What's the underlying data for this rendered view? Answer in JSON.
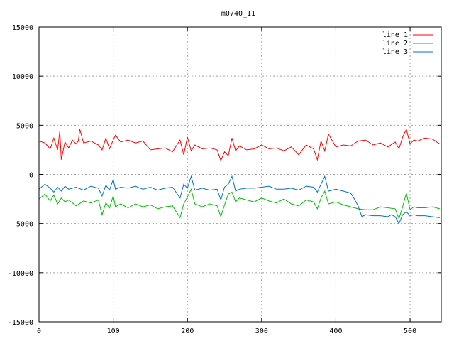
{
  "chart_data": {
    "type": "line",
    "title": "m0740_11",
    "xlabel": "",
    "ylabel": "",
    "xlim": [
      0,
      542
    ],
    "ylim": [
      -15000,
      15000
    ],
    "xticks": [
      0,
      100,
      200,
      300,
      400,
      500
    ],
    "yticks": [
      -15000,
      -10000,
      -5000,
      0,
      5000,
      10000,
      15000
    ],
    "xtick_labels": [
      "0",
      "100",
      "200",
      "300",
      "400",
      "500"
    ],
    "ytick_labels": [
      "-15000",
      "-10000",
      "-5000",
      "0",
      "5000",
      "10000",
      "15000"
    ],
    "grid": true,
    "legend_position": "top-right",
    "series": [
      {
        "name": "line 1",
        "color": "#ff0000",
        "x": [
          0,
          8,
          15,
          20,
          25,
          28,
          30,
          35,
          40,
          45,
          50,
          53,
          55,
          60,
          70,
          80,
          85,
          90,
          95,
          100,
          103,
          110,
          120,
          130,
          140,
          150,
          160,
          170,
          180,
          190,
          195,
          200,
          205,
          210,
          220,
          230,
          240,
          245,
          250,
          255,
          260,
          265,
          270,
          280,
          290,
          300,
          310,
          320,
          330,
          340,
          350,
          360,
          370,
          375,
          380,
          385,
          390,
          400,
          410,
          420,
          430,
          440,
          450,
          460,
          470,
          480,
          485,
          490,
          495,
          500,
          505,
          510,
          520,
          530,
          540
        ],
        "y": [
          3400,
          3200,
          2600,
          3700,
          2500,
          4400,
          1500,
          3300,
          2700,
          3500,
          3100,
          3400,
          4600,
          3200,
          3400,
          3000,
          2500,
          3700,
          2600,
          3500,
          4000,
          3300,
          3500,
          3200,
          3400,
          2500,
          2600,
          2700,
          2300,
          3500,
          2000,
          3800,
          2400,
          3000,
          2600,
          2700,
          2500,
          1400,
          2300,
          1900,
          3700,
          2400,
          2900,
          2500,
          2600,
          3000,
          2600,
          2700,
          2400,
          2800,
          2000,
          3000,
          2600,
          1500,
          3400,
          2400,
          4100,
          2800,
          3000,
          2900,
          3400,
          3500,
          3000,
          3200,
          2800,
          3300,
          2600,
          3800,
          4600,
          3100,
          3500,
          3400,
          3700,
          3600,
          3100
        ]
      },
      {
        "name": "line 2",
        "color": "#00c000",
        "x": [
          0,
          8,
          15,
          20,
          25,
          30,
          35,
          40,
          50,
          60,
          70,
          80,
          85,
          90,
          95,
          100,
          103,
          110,
          120,
          130,
          140,
          150,
          160,
          170,
          180,
          190,
          195,
          200,
          205,
          210,
          220,
          230,
          240,
          245,
          250,
          255,
          260,
          265,
          270,
          280,
          290,
          300,
          310,
          320,
          330,
          340,
          350,
          360,
          370,
          375,
          380,
          385,
          390,
          400,
          410,
          420,
          430,
          440,
          450,
          460,
          470,
          480,
          485,
          490,
          495,
          500,
          505,
          510,
          520,
          530,
          540
        ],
        "y": [
          -2500,
          -2000,
          -2700,
          -2100,
          -3000,
          -2400,
          -2800,
          -2600,
          -3200,
          -2700,
          -2900,
          -2600,
          -4100,
          -2900,
          -3400,
          -2200,
          -3300,
          -3000,
          -3400,
          -3000,
          -3300,
          -3100,
          -3500,
          -3300,
          -3200,
          -4400,
          -3000,
          -2300,
          -1500,
          -3000,
          -3300,
          -3000,
          -3200,
          -4300,
          -3100,
          -2000,
          -1800,
          -2800,
          -2400,
          -2600,
          -2800,
          -2400,
          -2700,
          -2900,
          -2500,
          -3000,
          -3200,
          -2600,
          -2800,
          -3500,
          -2400,
          -1700,
          -3000,
          -2800,
          -3100,
          -3300,
          -3500,
          -3600,
          -3600,
          -3300,
          -3400,
          -3500,
          -4500,
          -3300,
          -1900,
          -3600,
          -3300,
          -3400,
          -3400,
          -3300,
          -3500
        ]
      },
      {
        "name": "line 3",
        "color": "#0070d0",
        "x": [
          0,
          8,
          15,
          20,
          25,
          30,
          35,
          40,
          50,
          60,
          70,
          80,
          85,
          90,
          95,
          100,
          103,
          110,
          120,
          130,
          140,
          150,
          160,
          170,
          180,
          190,
          195,
          200,
          205,
          210,
          220,
          230,
          240,
          245,
          250,
          255,
          260,
          265,
          270,
          280,
          290,
          300,
          310,
          320,
          330,
          340,
          350,
          360,
          370,
          375,
          380,
          385,
          390,
          400,
          410,
          420,
          425,
          430,
          435,
          440,
          450,
          460,
          470,
          475,
          480,
          485,
          490,
          495,
          500,
          505,
          510,
          520,
          530,
          540
        ],
        "y": [
          -1500,
          -1000,
          -1400,
          -1800,
          -1300,
          -1700,
          -1200,
          -1500,
          -1300,
          -1600,
          -1200,
          -1400,
          -2200,
          -1100,
          -1600,
          -500,
          -1500,
          -1300,
          -1400,
          -1200,
          -1500,
          -1300,
          -1600,
          -1400,
          -1300,
          -2400,
          -1000,
          -1400,
          -200,
          -1600,
          -1400,
          -1600,
          -1500,
          -2600,
          -1300,
          -1000,
          -200,
          -1700,
          -1500,
          -1400,
          -1400,
          -1300,
          -1200,
          -1500,
          -1500,
          -1400,
          -1600,
          -1200,
          -1300,
          -1800,
          -1000,
          -200,
          -1700,
          -1500,
          -1700,
          -1900,
          -2500,
          -3200,
          -4300,
          -4100,
          -4200,
          -4200,
          -4300,
          -4100,
          -4300,
          -5000,
          -4100,
          -3800,
          -4200,
          -4100,
          -4200,
          -4200,
          -4300,
          -4400
        ]
      }
    ]
  }
}
